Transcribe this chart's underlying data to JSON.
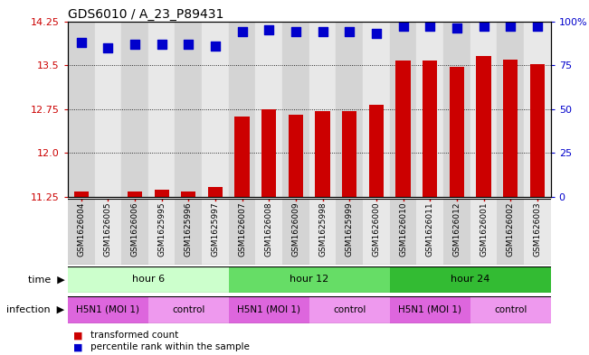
{
  "title": "GDS6010 / A_23_P89431",
  "samples": [
    "GSM1626004",
    "GSM1626005",
    "GSM1626006",
    "GSM1625995",
    "GSM1625996",
    "GSM1625997",
    "GSM1626007",
    "GSM1626008",
    "GSM1626009",
    "GSM1625998",
    "GSM1625999",
    "GSM1626000",
    "GSM1626010",
    "GSM1626011",
    "GSM1626012",
    "GSM1626001",
    "GSM1626002",
    "GSM1626003"
  ],
  "bar_values": [
    11.35,
    11.22,
    11.35,
    11.38,
    11.35,
    11.42,
    12.62,
    12.75,
    12.65,
    12.72,
    12.72,
    12.82,
    13.58,
    13.58,
    13.48,
    13.65,
    13.6,
    13.52
  ],
  "percentile_values": [
    88,
    85,
    87,
    87,
    87,
    86,
    94,
    95,
    94,
    94,
    94,
    93,
    97,
    97,
    96,
    97,
    97,
    97
  ],
  "ylim_left": [
    11.25,
    14.25
  ],
  "ylim_right": [
    0,
    100
  ],
  "yticks_left": [
    11.25,
    12.0,
    12.75,
    13.5,
    14.25
  ],
  "yticks_right": [
    0,
    25,
    50,
    75,
    100
  ],
  "bar_color": "#cc0000",
  "dot_color": "#0000cc",
  "background_color": "#ffffff",
  "col_bg_even": "#d4d4d4",
  "col_bg_odd": "#e8e8e8",
  "tick_label_color_left": "#cc0000",
  "tick_label_color_right": "#0000cc",
  "bar_width": 0.55,
  "dot_size": 45,
  "dot_marker": "s",
  "font_size_title": 10,
  "font_size_ticks": 8,
  "font_size_sample": 6.5,
  "font_size_row_label": 8,
  "time_groups": [
    {
      "label": "hour 6",
      "start": 0,
      "end": 6,
      "color": "#ccffcc"
    },
    {
      "label": "hour 12",
      "start": 6,
      "end": 12,
      "color": "#66dd66"
    },
    {
      "label": "hour 24",
      "start": 12,
      "end": 18,
      "color": "#33bb33"
    }
  ],
  "infection_groups": [
    {
      "label": "H5N1 (MOI 1)",
      "start": 0,
      "end": 3,
      "color": "#dd66dd"
    },
    {
      "label": "control",
      "start": 3,
      "end": 6,
      "color": "#ee99ee"
    },
    {
      "label": "H5N1 (MOI 1)",
      "start": 6,
      "end": 9,
      "color": "#dd66dd"
    },
    {
      "label": "control",
      "start": 9,
      "end": 12,
      "color": "#ee99ee"
    },
    {
      "label": "H5N1 (MOI 1)",
      "start": 12,
      "end": 15,
      "color": "#dd66dd"
    },
    {
      "label": "control",
      "start": 15,
      "end": 18,
      "color": "#ee99ee"
    }
  ],
  "legend_entries": [
    {
      "label": "transformed count",
      "color": "#cc0000"
    },
    {
      "label": "percentile rank within the sample",
      "color": "#0000cc"
    }
  ]
}
